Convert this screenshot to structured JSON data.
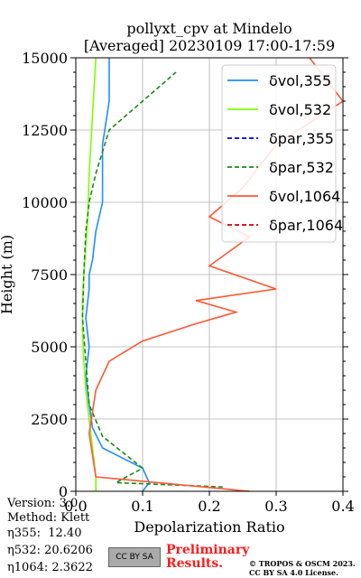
{
  "chart_data": {
    "type": "line",
    "title": "pollyxt_cpv at Mindelo",
    "subtitle": "[Averaged] 20230109 17:00-17:59",
    "xlabel": "Depolarization Ratio",
    "ylabel": "Height (m)",
    "xlim": [
      0,
      0.4
    ],
    "ylim": [
      0,
      15000
    ],
    "xticks": [
      "0.0",
      "0.1",
      "0.2",
      "0.3",
      "0.4"
    ],
    "yticks": [
      "0",
      "2500",
      "5000",
      "7500",
      "10000",
      "12500",
      "15000"
    ],
    "grid": true,
    "legend_position": "top-right",
    "series": [
      {
        "name": "δvol,355",
        "color": "#1f8fff",
        "dash": "solid",
        "x": [
          0.1,
          0.11,
          0.1,
          0.04,
          0.025,
          0.02,
          0.015,
          0.02,
          0.015,
          0.02,
          0.02,
          0.025,
          0.03,
          0.04,
          0.04,
          0.05,
          0.05
        ],
        "y": [
          0,
          300,
          800,
          1500,
          2200,
          3000,
          4000,
          5000,
          6000,
          7000,
          7500,
          8000,
          9000,
          10000,
          12000,
          13500,
          15000
        ]
      },
      {
        "name": "δvol,532",
        "color": "#7fff00",
        "dash": "solid",
        "x": [
          0.03,
          0.03,
          0.025,
          0.02,
          0.015,
          0.012,
          0.01,
          0.01,
          0.012,
          0.015,
          0.018,
          0.02,
          0.025,
          0.03
        ],
        "y": [
          0,
          500,
          1500,
          2500,
          3500,
          4500,
          5500,
          6500,
          7500,
          8500,
          9500,
          11000,
          13000,
          15000
        ]
      },
      {
        "name": "δpar,355",
        "color": "#0000cc",
        "dash": "dashed",
        "x": [],
        "y": []
      },
      {
        "name": "δpar,532",
        "color": "#1a8a1a",
        "dash": "dashed",
        "x": [
          0.22,
          0.06,
          0.1,
          0.04,
          0.02,
          0.015,
          0.01,
          0.012,
          0.015,
          0.02,
          0.03,
          0.05,
          0.1,
          0.15
        ],
        "y": [
          150,
          300,
          800,
          1900,
          3000,
          4500,
          6000,
          7500,
          9000,
          10000,
          11000,
          12500,
          13500,
          14500
        ]
      },
      {
        "name": "δvol,1064",
        "color": "#ff5733",
        "dash": "solid",
        "x": [
          0.26,
          0.03,
          0.02,
          0.03,
          0.05,
          0.1,
          0.18,
          0.24,
          0.18,
          0.3,
          0.2,
          0.26,
          0.2,
          0.25,
          0.3,
          0.4,
          0.35
        ],
        "y": [
          0,
          500,
          2000,
          3500,
          4500,
          5200,
          5800,
          6200,
          6600,
          7000,
          7800,
          8800,
          9500,
          10500,
          12000,
          13500,
          15000
        ]
      },
      {
        "name": "δpar,1064",
        "color": "#cc0000",
        "dash": "dashed",
        "x": [],
        "y": []
      }
    ]
  },
  "meta": {
    "version": "Version: 3.0",
    "method": "Method: Klett",
    "eta355": "η355:  12.40",
    "eta532": "η532: 20.6206",
    "eta1064": "η1064: 2.3622"
  },
  "footer": {
    "license_badge": "CC BY SA",
    "preliminary_line1": "Preliminary",
    "preliminary_line2": "Results.",
    "copyright_line1": "© TROPOS & OSCM 2023.",
    "copyright_line2": "CC BY SA 4.0 License."
  }
}
